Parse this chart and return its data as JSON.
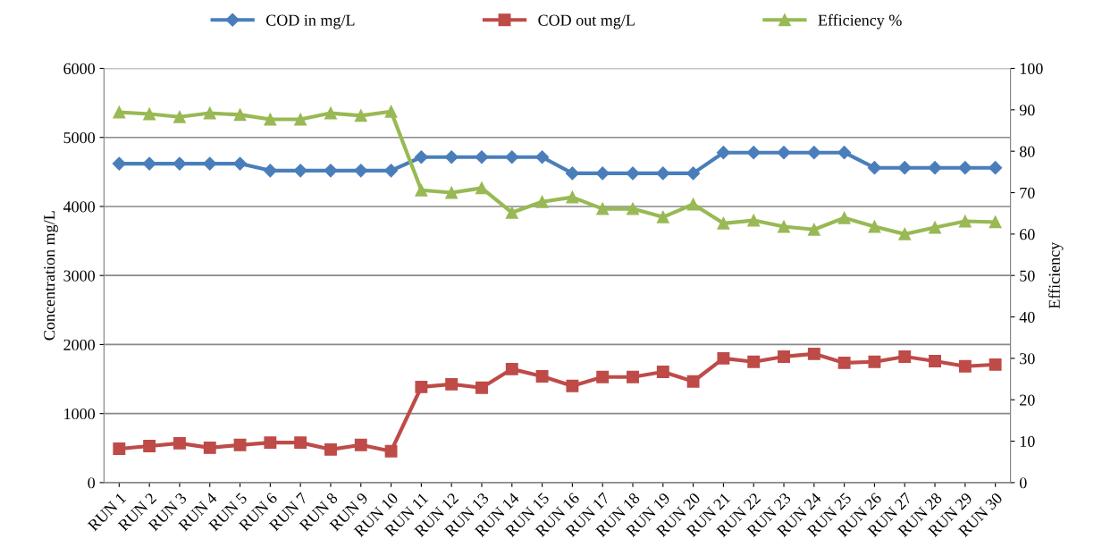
{
  "chart_data": {
    "type": "line",
    "ylabel": "Concentration mg/L",
    "y2label": "Efficiency",
    "categories": [
      "RUN 1",
      "RUN 2",
      "RUN 3",
      "RUN 4",
      "RUN 5",
      "RUN 6",
      "RUN 7",
      "RUN 8",
      "RUN 9",
      "RUN 10",
      "RUN 11",
      "RUN 12",
      "RUN 13",
      "RUN 14",
      "RUN 15",
      "RUN 16",
      "RUN 17",
      "RUN 18",
      "RUN 19",
      "RUN 20",
      "RUN 21",
      "RUN 22",
      "RUN 23",
      "RUN 24",
      "RUN 25",
      "RUN 26",
      "RUN 27",
      "RUN 28",
      "RUN 29",
      "RUN 30"
    ],
    "series": [
      {
        "name": "COD in mg/L",
        "color": "#4a7ebb",
        "marker": "diamond",
        "values": [
          4620,
          4620,
          4620,
          4620,
          4620,
          4520,
          4520,
          4520,
          4520,
          4520,
          4715,
          4715,
          4715,
          4715,
          4715,
          4480,
          4480,
          4480,
          4480,
          4480,
          4780,
          4780,
          4780,
          4780,
          4780,
          4560,
          4560,
          4560,
          4560,
          4560
        ]
      },
      {
        "name": "COD out mg/L",
        "color": "#be4b48",
        "marker": "square",
        "values": [
          490,
          530,
          570,
          505,
          545,
          580,
          580,
          480,
          545,
          455,
          1385,
          1425,
          1375,
          1645,
          1540,
          1400,
          1530,
          1530,
          1605,
          1465,
          1800,
          1750,
          1825,
          1865,
          1735,
          1750,
          1825,
          1760,
          1685,
          1710
        ]
      },
      {
        "name": "Efficiency %",
        "color": "#98b954",
        "marker": "triangle",
        "axis": "y2",
        "values": [
          89.4,
          89.0,
          88.3,
          89.2,
          88.8,
          87.7,
          87.7,
          89.2,
          88.6,
          89.6,
          70.6,
          70.0,
          71.1,
          65.2,
          67.8,
          68.9,
          66.1,
          66.1,
          64.1,
          67.2,
          62.6,
          63.3,
          61.8,
          61.1,
          63.9,
          61.8,
          60.0,
          61.6,
          63.1,
          62.9
        ]
      }
    ],
    "ylim": [
      0,
      6000
    ],
    "yticks": [
      0,
      1000,
      2000,
      3000,
      4000,
      5000,
      6000
    ],
    "y2lim": [
      0,
      100
    ],
    "y2ticks": [
      0,
      10,
      20,
      30,
      40,
      50,
      60,
      70,
      80,
      90,
      100
    ],
    "grid": "y",
    "legend": "top"
  }
}
